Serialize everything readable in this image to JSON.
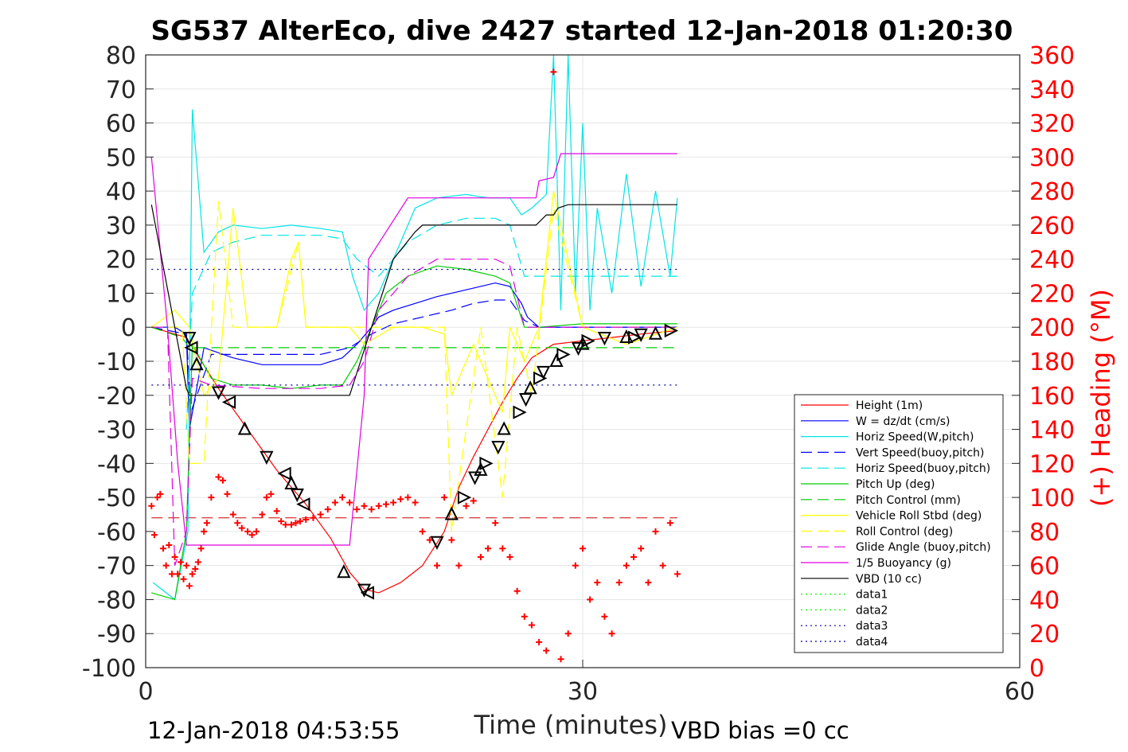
{
  "chart_data": {
    "type": "line",
    "title": "SG537 AlterEco, dive 2427 started 12-Jan-2018 01:20:30",
    "xlabel": "Time (minutes)",
    "ylabel": "",
    "y2label": "(+) Heading (°M)",
    "xlim": [
      0,
      60
    ],
    "ylim": [
      -100,
      80
    ],
    "y2lim": [
      0,
      360
    ],
    "x_ticks": [
      "0",
      "30",
      "60"
    ],
    "y_ticks": [
      "80",
      "70",
      "60",
      "50",
      "40",
      "30",
      "20",
      "10",
      "0",
      "-10",
      "-20",
      "-30",
      "-40",
      "-50",
      "-60",
      "-70",
      "-80",
      "-90",
      "-100"
    ],
    "y2_ticks": [
      "360",
      "340",
      "320",
      "300",
      "280",
      "260",
      "240",
      "220",
      "200",
      "180",
      "160",
      "140",
      "120",
      "100",
      "80",
      "60",
      "40",
      "20",
      "0"
    ],
    "grid": true,
    "legend_position": "bottom-right",
    "footer_left": "12-Jan-2018 04:53:55",
    "footer_right": "VBD bias =0 cc",
    "series": [
      {
        "name": "Height (1m)",
        "color": "#ff0000",
        "style": "solid",
        "x": [
          0.4,
          2.8,
          5.0,
          7.0,
          9.0,
          11.0,
          12.7,
          14.0,
          15.0,
          16.0,
          17.5,
          19.0,
          20.5,
          21.5,
          22.5,
          23.5,
          24.5,
          25.5,
          26.5,
          28.0,
          30.0,
          32.0,
          34.0,
          36.5
        ],
        "y": [
          0,
          -3,
          -18,
          -30,
          -42,
          -52,
          -62,
          -72,
          -77,
          -78,
          -75,
          -70,
          -60,
          -47,
          -38,
          -30,
          -22,
          -15,
          -9,
          -5,
          -4,
          -3,
          -2,
          -1
        ]
      },
      {
        "name": "W = dz/dt (cm/s)",
        "color": "#0000ff",
        "style": "solid",
        "x": [
          0.4,
          2.0,
          2.8,
          3.0,
          4.0,
          6.0,
          8.0,
          10.0,
          12.0,
          13.5,
          14.5,
          15.5,
          16.0,
          17.0,
          18.5,
          20.0,
          22.0,
          24.0,
          25.0,
          25.8,
          26.2,
          27.0,
          30.0,
          33.0,
          36.5
        ],
        "y": [
          0,
          0,
          -2,
          -30,
          -6,
          -9,
          -11,
          -11,
          -11,
          -9,
          -5,
          0,
          3,
          5,
          7,
          9,
          11,
          13,
          12,
          7,
          3,
          0,
          0,
          0,
          0
        ]
      },
      {
        "name": "Horiz Speed(W,pitch)",
        "color": "#00e5e5",
        "style": "solid",
        "x": [
          0.5,
          2.0,
          2.9,
          3.2,
          4.0,
          5.0,
          6.0,
          8.0,
          10.0,
          12.0,
          13.5,
          14.2,
          15.0,
          16.0,
          17.0,
          18.5,
          20.0,
          22.0,
          23.5,
          25.0,
          25.8,
          26.5,
          27.5,
          28.0,
          28.5,
          29.0,
          29.5,
          30.0,
          30.5,
          31.0,
          32.0,
          33.0,
          34.0,
          35.0,
          36.0,
          36.5
        ],
        "y": [
          -75,
          -80,
          -60,
          64,
          22,
          28,
          30,
          29,
          30,
          29,
          28,
          15,
          5,
          10,
          20,
          35,
          38,
          39,
          38,
          38,
          33,
          35,
          39,
          80,
          5,
          80,
          10,
          60,
          5,
          35,
          10,
          45,
          12,
          40,
          15,
          38
        ]
      },
      {
        "name": "Vert Speed(buoy,pitch)",
        "color": "#0000ff",
        "style": "dashed",
        "x": [
          0.4,
          2.8,
          3.1,
          4.5,
          8.0,
          12.0,
          14.0,
          15.5,
          17.0,
          19.0,
          21.0,
          22.5,
          24.0,
          25.0,
          26.0,
          27.0,
          36.5
        ],
        "y": [
          0,
          -2,
          -25,
          -8,
          -8,
          -8,
          -6,
          -2,
          1,
          3,
          5,
          7,
          8,
          8,
          2,
          0,
          0
        ]
      },
      {
        "name": "Horiz Speed(buoy,pitch)",
        "color": "#00e5e5",
        "style": "dashed",
        "x": [
          2.8,
          3.2,
          4.5,
          6.0,
          8.0,
          10.0,
          12.0,
          13.5,
          14.5,
          16.0,
          18.0,
          20.0,
          22.0,
          24.0,
          25.0,
          26.0,
          27.0,
          36.5
        ],
        "y": [
          -30,
          10,
          22,
          25,
          27,
          27,
          27,
          26,
          20,
          15,
          25,
          30,
          32,
          32,
          30,
          15,
          15,
          15
        ]
      },
      {
        "name": "Pitch Up (deg)",
        "color": "#00cc00",
        "style": "solid",
        "x": [
          0.4,
          2.0,
          2.8,
          3.2,
          4.5,
          6.0,
          8.0,
          10.0,
          12.0,
          13.5,
          14.5,
          15.5,
          16.5,
          18.0,
          20.0,
          22.0,
          24.0,
          25.0,
          26.0,
          27.0,
          30.0,
          33.0,
          36.5
        ],
        "y": [
          -78,
          -80,
          -60,
          -5,
          -15,
          -17,
          -17,
          -18,
          -17,
          -17,
          -10,
          0,
          10,
          15,
          18,
          17,
          15,
          13,
          0,
          0,
          1,
          1,
          1
        ]
      },
      {
        "name": "Pitch Control (mm)",
        "color": "#00cc00",
        "style": "dashed",
        "x": [
          0.4,
          2.5,
          3.0,
          36.5
        ],
        "y": [
          0,
          -3,
          -6,
          -6
        ]
      },
      {
        "name": "Vehicle Roll Stbd (deg)",
        "color": "#ffff00",
        "style": "solid",
        "x": [
          0.4,
          2.0,
          3.0,
          4.0,
          5.0,
          6.0,
          7.0,
          9.0,
          10.0,
          10.5,
          11.0,
          12.0,
          14.0,
          15.0,
          17.0,
          19.0,
          20.5,
          21.0,
          22.5,
          24.5,
          25.0,
          26.0,
          27.0,
          28.0,
          30.0,
          33.0,
          36.5
        ],
        "y": [
          0,
          5,
          0,
          -20,
          -15,
          35,
          0,
          0,
          20,
          25,
          0,
          0,
          0,
          -5,
          0,
          0,
          -2,
          -20,
          -5,
          -25,
          0,
          -10,
          0,
          40,
          0,
          -5,
          0
        ]
      },
      {
        "name": "Roll Control (deg)",
        "color": "#ffff00",
        "style": "dashed",
        "x": [
          0.4,
          2.5,
          3.0,
          4.0,
          5.0,
          6.0,
          7.0,
          9.0,
          10.5,
          11.0,
          14.0,
          16.0,
          20.5,
          21.0,
          23.0,
          24.5,
          25.5,
          26.5,
          28.0,
          30.0,
          36.5
        ],
        "y": [
          0,
          0,
          -40,
          -40,
          37,
          0,
          0,
          0,
          25,
          0,
          0,
          0,
          0,
          -60,
          0,
          -50,
          0,
          -20,
          35,
          0,
          0
        ]
      },
      {
        "name": "Glide Angle (buoy,pitch)",
        "color": "#e000e0",
        "style": "dashed",
        "x": [
          0.4,
          1.5,
          2.0,
          2.8,
          3.2,
          4.5,
          8.0,
          12.0,
          14.0,
          15.0,
          16.0,
          18.0,
          20.0,
          22.0,
          24.0,
          25.0,
          26.0,
          27.0,
          36.5
        ],
        "y": [
          0,
          0,
          -70,
          -60,
          -15,
          -17,
          -18,
          -18,
          -17,
          -10,
          5,
          15,
          20,
          20,
          20,
          18,
          0,
          0,
          0
        ]
      },
      {
        "name": "1/5 Buoyancy (g)",
        "color": "#e000e0",
        "style": "solid",
        "x": [
          0.4,
          1.5,
          2.2,
          2.8,
          3.0,
          14.0,
          15.0,
          15.3,
          18.0,
          19.0,
          25.5,
          26.8,
          27.0,
          28.0,
          28.5,
          36.5
        ],
        "y": [
          50,
          0,
          -40,
          -64,
          -64,
          -64,
          -20,
          20,
          38,
          38,
          38,
          38,
          43,
          44,
          51,
          51
        ]
      },
      {
        "name": "VBD (10 cc)",
        "color": "#000000",
        "style": "solid",
        "x": [
          0.4,
          2.8,
          3.0,
          14.0,
          15.5,
          17.0,
          18.5,
          19.0,
          25.0,
          26.8,
          27.5,
          28.0,
          28.3,
          29.0,
          36.5
        ],
        "y": [
          36,
          -18,
          -20,
          -20,
          0,
          20,
          28,
          30,
          30,
          30,
          33,
          33,
          35,
          36,
          36
        ]
      },
      {
        "name": "data1",
        "color": "#00ff00",
        "style": "dotted",
        "x": [],
        "y": []
      },
      {
        "name": "data2",
        "color": "#00ff00",
        "style": "dotted",
        "x": [],
        "y": []
      },
      {
        "name": "data3",
        "color": "#0000a0",
        "style": "dotted",
        "x": [
          0.4,
          36.5
        ],
        "y": [
          17,
          17
        ]
      },
      {
        "name": "data4",
        "color": "#0000a0",
        "style": "dotted",
        "x": [
          0.4,
          36.5
        ],
        "y": [
          -17,
          -17
        ]
      }
    ],
    "reference_line": {
      "color": "#cc0000",
      "style": "dashed",
      "y": -56,
      "x": [
        0.4,
        36.5
      ]
    },
    "heading_points": {
      "color": "#ff0000",
      "marker": "plus",
      "axis": "right",
      "x": [
        0.4,
        0.6,
        0.8,
        1.0,
        1.2,
        1.4,
        1.6,
        1.8,
        2.0,
        2.2,
        2.4,
        2.6,
        2.8,
        3.0,
        3.2,
        3.4,
        3.6,
        3.8,
        4.0,
        4.2,
        4.5,
        5.0,
        5.3,
        5.6,
        6.0,
        6.3,
        6.6,
        7.0,
        7.3,
        7.6,
        8.0,
        8.3,
        8.6,
        9.0,
        9.3,
        9.6,
        10.0,
        10.3,
        10.6,
        11.0,
        11.5,
        12.0,
        12.5,
        13.0,
        13.5,
        14.0,
        14.5,
        15.0,
        15.5,
        16.0,
        16.5,
        17.0,
        17.5,
        18.0,
        18.5,
        19.0,
        19.5,
        20.0,
        20.5,
        21.0,
        21.5,
        22.0,
        22.5,
        23.0,
        23.5,
        24.0,
        24.5,
        25.0,
        25.5,
        26.0,
        26.5,
        27.0,
        27.5,
        28.0,
        28.5,
        29.0,
        29.5,
        30.0,
        30.5,
        31.0,
        31.5,
        32.0,
        32.5,
        33.0,
        33.5,
        34.0,
        34.5,
        35.0,
        35.5,
        36.0,
        36.5
      ],
      "y": [
        95,
        78,
        100,
        102,
        70,
        60,
        72,
        55,
        65,
        55,
        62,
        52,
        60,
        48,
        55,
        58,
        62,
        70,
        80,
        85,
        100,
        112,
        110,
        102,
        90,
        85,
        82,
        80,
        78,
        80,
        90,
        100,
        102,
        92,
        86,
        84,
        84,
        85,
        86,
        87,
        88,
        90,
        93,
        97,
        100,
        97,
        93,
        95,
        93,
        95,
        96,
        97,
        99,
        100,
        97,
        80,
        75,
        60,
        100,
        75,
        60,
        95,
        98,
        65,
        70,
        85,
        70,
        65,
        45,
        30,
        25,
        15,
        10,
        350,
        5,
        20,
        60,
        70,
        40,
        50,
        30,
        20,
        50,
        60,
        65,
        70,
        50,
        80,
        60,
        85,
        55
      ]
    },
    "dive_markers": {
      "color": "#000000",
      "marker": "triangle",
      "x": [
        3.0,
        3.2,
        3.5,
        5.0,
        5.8,
        6.8,
        8.3,
        9.6,
        10.0,
        10.4,
        10.9,
        13.6,
        15.0,
        15.3,
        20.0,
        21.0,
        21.8,
        22.6,
        23.0,
        23.3,
        24.2,
        24.6,
        25.6,
        26.1,
        26.4,
        27.0,
        27.3,
        28.2,
        28.6,
        29.7,
        30.0,
        30.3,
        31.5,
        33.0,
        33.5,
        34.0,
        35.0,
        36.0
      ],
      "y": [
        -3,
        -6,
        -11,
        -19,
        -22,
        -30,
        -38,
        -43,
        -46,
        -49,
        -52,
        -72,
        -77,
        -78,
        -63,
        -55,
        -50,
        -44,
        -42,
        -40,
        -35,
        -30,
        -25,
        -21,
        -18,
        -15,
        -13,
        -10,
        -8,
        -6,
        -5,
        -4,
        -3,
        -3,
        -3,
        -2,
        -2,
        -1
      ]
    }
  }
}
